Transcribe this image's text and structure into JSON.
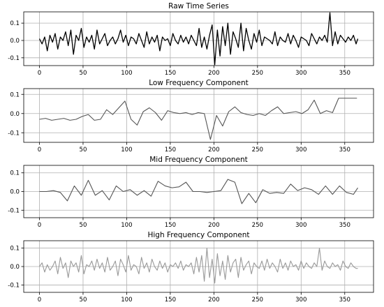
{
  "chart_data": [
    {
      "type": "line",
      "title": "Raw Time Series",
      "xlabel": "",
      "ylabel": "",
      "xlim": [
        -18,
        383
      ],
      "ylim": [
        -0.145,
        0.165
      ],
      "xticks": [
        0,
        50,
        100,
        150,
        200,
        250,
        300,
        350
      ],
      "yticks": [
        -0.1,
        0.0,
        0.1
      ],
      "grid": true,
      "line_color": "#000000",
      "series": [
        {
          "x": [
            0,
            3,
            6,
            9,
            12,
            15,
            18,
            21,
            24,
            27,
            30,
            33,
            36,
            39,
            42,
            45,
            48,
            51,
            54,
            57,
            60,
            63,
            66,
            69,
            72,
            75,
            78,
            81,
            84,
            87,
            90,
            93,
            96,
            99,
            102,
            105,
            108,
            111,
            114,
            117,
            120,
            123,
            126,
            129,
            132,
            135,
            138,
            141,
            144,
            147,
            150,
            153,
            156,
            159,
            162,
            165,
            168,
            171,
            174,
            177,
            180,
            183,
            186,
            189,
            192,
            195,
            198,
            201,
            204,
            207,
            210,
            213,
            216,
            219,
            222,
            225,
            228,
            231,
            234,
            237,
            240,
            243,
            246,
            249,
            252,
            255,
            258,
            261,
            264,
            267,
            270,
            273,
            276,
            279,
            282,
            285,
            288,
            291,
            294,
            297,
            300,
            303,
            306,
            309,
            312,
            315,
            318,
            321,
            324,
            327,
            330,
            333,
            336,
            339,
            342,
            345,
            348,
            351,
            354,
            357,
            360,
            363,
            365
          ],
          "values": [
            0.01,
            -0.02,
            0.02,
            -0.06,
            0.03,
            -0.01,
            0.04,
            -0.05,
            0.02,
            0.0,
            0.05,
            -0.03,
            0.06,
            -0.08,
            0.03,
            0.0,
            0.07,
            -0.04,
            0.02,
            -0.01,
            0.03,
            -0.05,
            0.06,
            -0.02,
            0.01,
            0.04,
            -0.03,
            0.0,
            0.02,
            -0.02,
            0.01,
            0.06,
            -0.01,
            0.03,
            -0.03,
            0.02,
            0.01,
            -0.02,
            0.04,
            0.0,
            -0.04,
            0.05,
            -0.02,
            0.02,
            -0.01,
            0.03,
            -0.06,
            0.02,
            0.0,
            0.01,
            -0.03,
            0.04,
            0.0,
            -0.02,
            0.03,
            -0.01,
            0.02,
            -0.02,
            0.03,
            0.0,
            -0.03,
            0.07,
            -0.04,
            0.02,
            -0.05,
            0.03,
            0.09,
            -0.14,
            0.06,
            -0.09,
            0.08,
            -0.03,
            0.1,
            -0.08,
            0.05,
            0.01,
            -0.04,
            0.1,
            -0.06,
            0.07,
            0.0,
            -0.05,
            0.04,
            -0.01,
            0.06,
            -0.03,
            0.02,
            0.01,
            0.0,
            -0.02,
            0.05,
            -0.03,
            0.02,
            0.0,
            -0.01,
            0.04,
            -0.02,
            0.03,
            0.0,
            -0.04,
            0.02,
            0.01,
            0.0,
            -0.03,
            0.04,
            0.01,
            -0.02,
            0.02,
            0.0,
            0.03,
            -0.01,
            0.16,
            -0.03,
            0.05,
            -0.02,
            0.03,
            0.01,
            -0.01,
            0.02,
            0.0,
            0.03,
            -0.02,
            0.01
          ]
        }
      ]
    },
    {
      "type": "line",
      "title": "Low Frequency Component",
      "xlabel": "",
      "ylabel": "",
      "xlim": [
        -18,
        383
      ],
      "ylim": [
        -0.15,
        0.13
      ],
      "xticks": [
        0,
        50,
        100,
        150,
        200,
        250,
        300,
        350
      ],
      "yticks": [
        -0.1,
        0.0,
        0.1
      ],
      "grid": true,
      "line_color": "#555555",
      "series": [
        {
          "x": [
            0,
            7,
            14,
            21,
            28,
            35,
            42,
            49,
            56,
            63,
            70,
            77,
            84,
            91,
            98,
            105,
            112,
            119,
            126,
            133,
            140,
            147,
            154,
            161,
            168,
            175,
            182,
            189,
            196,
            203,
            210,
            217,
            224,
            231,
            238,
            245,
            252,
            259,
            266,
            273,
            280,
            287,
            294,
            301,
            308,
            315,
            322,
            329,
            336,
            343,
            350,
            357,
            364
          ],
          "values": [
            -0.03,
            -0.025,
            -0.035,
            -0.03,
            -0.025,
            -0.035,
            -0.03,
            -0.015,
            -0.005,
            -0.035,
            -0.03,
            0.02,
            -0.005,
            0.03,
            0.065,
            -0.03,
            -0.06,
            0.01,
            0.03,
            0.005,
            -0.035,
            0.015,
            0.005,
            0.0,
            0.005,
            -0.005,
            0.005,
            0.0,
            -0.135,
            -0.01,
            -0.065,
            0.01,
            0.035,
            0.005,
            -0.005,
            -0.01,
            0.0,
            -0.01,
            0.015,
            0.035,
            0.0,
            0.005,
            0.01,
            0.0,
            0.02,
            0.07,
            0.0,
            0.015,
            0.005,
            0.08,
            0.08,
            0.08,
            0.08
          ]
        }
      ]
    },
    {
      "type": "line",
      "title": "Mid Frequency Component",
      "xlabel": "",
      "ylabel": "",
      "xlim": [
        -18,
        383
      ],
      "ylim": [
        -0.14,
        0.14
      ],
      "xticks": [
        0,
        50,
        100,
        150,
        200,
        250,
        300,
        350
      ],
      "yticks": [
        -0.1,
        0.0,
        0.1
      ],
      "grid": true,
      "line_color": "#555555",
      "series": [
        {
          "x": [
            0,
            8,
            16,
            24,
            32,
            40,
            48,
            56,
            64,
            72,
            80,
            88,
            96,
            104,
            112,
            120,
            128,
            136,
            144,
            152,
            160,
            168,
            176,
            184,
            192,
            200,
            208,
            216,
            224,
            232,
            240,
            248,
            256,
            264,
            272,
            280,
            288,
            296,
            304,
            312,
            320,
            328,
            336,
            344,
            352,
            360,
            365
          ],
          "values": [
            0.0,
            0.0,
            0.005,
            -0.005,
            -0.05,
            0.03,
            -0.02,
            0.06,
            -0.02,
            0.005,
            -0.045,
            0.03,
            0.0,
            0.01,
            -0.02,
            0.005,
            -0.025,
            0.055,
            0.03,
            0.02,
            0.025,
            0.05,
            0.0,
            0.0,
            -0.005,
            0.0,
            0.005,
            0.065,
            0.05,
            -0.065,
            -0.01,
            -0.06,
            0.01,
            -0.01,
            -0.005,
            -0.01,
            0.04,
            0.005,
            0.02,
            0.01,
            -0.015,
            0.03,
            -0.015,
            0.03,
            -0.005,
            -0.015,
            0.02
          ]
        }
      ]
    },
    {
      "type": "line",
      "title": "High Frequency Component",
      "xlabel": "",
      "ylabel": "",
      "xlim": [
        -18,
        383
      ],
      "ylim": [
        -0.14,
        0.14
      ],
      "xticks": [
        0,
        50,
        100,
        150,
        200,
        250,
        300,
        350
      ],
      "yticks": [
        -0.1,
        0.0,
        0.1
      ],
      "grid": true,
      "line_color": "#999999",
      "series": [
        {
          "x": [
            0,
            3,
            6,
            9,
            12,
            15,
            18,
            21,
            24,
            27,
            30,
            33,
            36,
            39,
            42,
            45,
            48,
            51,
            54,
            57,
            60,
            63,
            66,
            69,
            72,
            75,
            78,
            81,
            84,
            87,
            90,
            93,
            96,
            99,
            102,
            105,
            108,
            111,
            114,
            117,
            120,
            123,
            126,
            129,
            132,
            135,
            138,
            141,
            144,
            147,
            150,
            153,
            156,
            159,
            162,
            165,
            168,
            171,
            174,
            177,
            180,
            183,
            186,
            189,
            192,
            195,
            198,
            201,
            204,
            207,
            210,
            213,
            216,
            219,
            222,
            225,
            228,
            231,
            234,
            237,
            240,
            243,
            246,
            249,
            252,
            255,
            258,
            261,
            264,
            267,
            270,
            273,
            276,
            279,
            282,
            285,
            288,
            291,
            294,
            297,
            300,
            303,
            306,
            309,
            312,
            315,
            318,
            321,
            324,
            327,
            330,
            333,
            336,
            339,
            342,
            345,
            348,
            351,
            354,
            357,
            360,
            363,
            365
          ],
          "values": [
            0.0,
            0.02,
            -0.03,
            0.01,
            -0.02,
            0.0,
            0.03,
            -0.04,
            0.05,
            -0.01,
            0.02,
            -0.06,
            0.03,
            0.0,
            0.02,
            -0.03,
            0.06,
            -0.04,
            0.01,
            0.0,
            0.03,
            -0.02,
            0.04,
            -0.01,
            0.02,
            -0.03,
            0.05,
            -0.02,
            0.0,
            0.03,
            -0.05,
            0.04,
            0.01,
            -0.03,
            0.06,
            -0.02,
            0.01,
            0.0,
            -0.04,
            0.05,
            -0.01,
            0.02,
            -0.03,
            0.04,
            0.0,
            -0.02,
            0.03,
            -0.01,
            0.02,
            -0.03,
            0.01,
            0.0,
            0.02,
            -0.01,
            0.03,
            -0.02,
            0.01,
            0.0,
            0.02,
            -0.04,
            0.05,
            -0.03,
            0.06,
            -0.08,
            0.1,
            -0.06,
            0.04,
            -0.09,
            0.07,
            -0.05,
            0.03,
            -0.07,
            0.06,
            -0.03,
            0.02,
            0.04,
            -0.06,
            0.05,
            -0.02,
            0.01,
            0.03,
            -0.04,
            0.02,
            0.0,
            -0.01,
            0.03,
            -0.02,
            0.04,
            -0.01,
            0.02,
            0.0,
            -0.03,
            0.04,
            -0.01,
            0.02,
            -0.02,
            0.03,
            0.0,
            0.01,
            -0.02,
            0.03,
            -0.01,
            0.02,
            0.0,
            -0.01,
            0.02,
            0.0,
            0.1,
            -0.02,
            0.03,
            0.0,
            -0.01,
            0.02,
            0.0,
            0.01,
            -0.02,
            0.03,
            0.0,
            -0.01,
            0.02,
            0.0,
            -0.01,
            -0.01
          ]
        }
      ]
    }
  ]
}
